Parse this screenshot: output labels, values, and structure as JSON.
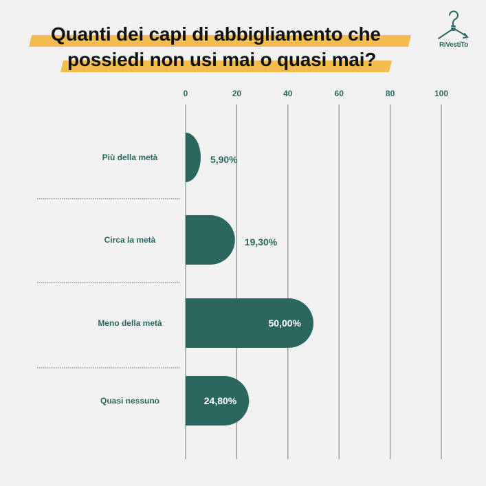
{
  "title": {
    "line1": "Quanti dei capi di abbigliamento che",
    "line2": "possiedi non usi mai o quasi mai?"
  },
  "logo": {
    "text": "RiVestiTo",
    "icon": "lightbulb-hanger-icon"
  },
  "colors": {
    "bar": "#2b675f",
    "highlight": "#f2bd4e",
    "background": "#f2f2f2",
    "text_dark": "#111111"
  },
  "chart_data": {
    "type": "bar",
    "orientation": "horizontal",
    "categories": [
      "Più della metà",
      "Circa la metà",
      "Meno della metà",
      "Quasi nessuno"
    ],
    "values": [
      5.9,
      19.3,
      50.0,
      24.8
    ],
    "value_labels": [
      "5,90%",
      "19,30%",
      "50,00%",
      "24,80%"
    ],
    "xlim": [
      0,
      100
    ],
    "xticks": [
      0,
      20,
      40,
      60,
      80,
      100
    ],
    "xtick_labels": [
      "0",
      "20",
      "40",
      "60",
      "80",
      "100"
    ],
    "axis_position": "top",
    "grid": true
  }
}
